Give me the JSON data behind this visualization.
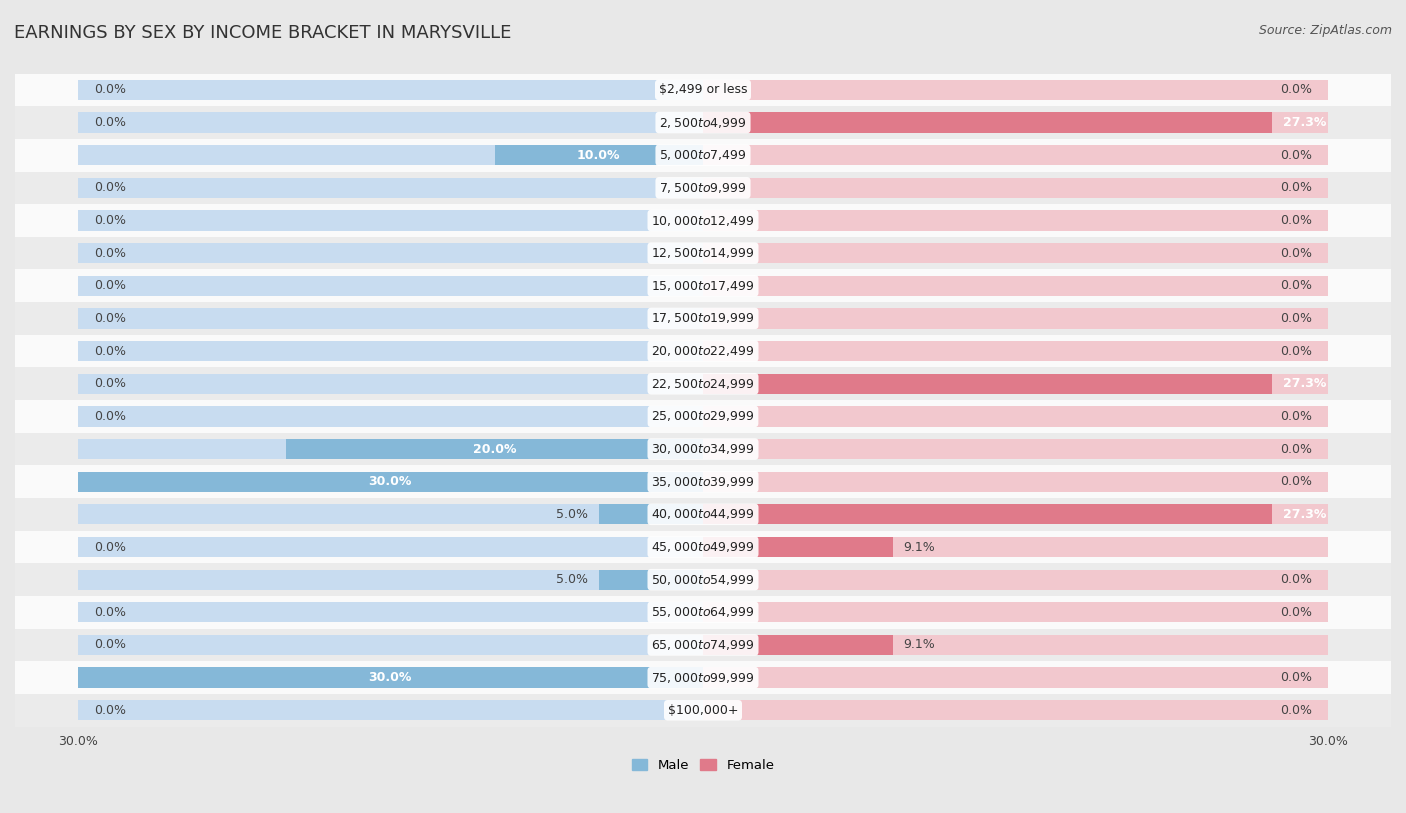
{
  "title": "EARNINGS BY SEX BY INCOME BRACKET IN MARYSVILLE",
  "source": "Source: ZipAtlas.com",
  "categories": [
    "$2,499 or less",
    "$2,500 to $4,999",
    "$5,000 to $7,499",
    "$7,500 to $9,999",
    "$10,000 to $12,499",
    "$12,500 to $14,999",
    "$15,000 to $17,499",
    "$17,500 to $19,999",
    "$20,000 to $22,499",
    "$22,500 to $24,999",
    "$25,000 to $29,999",
    "$30,000 to $34,999",
    "$35,000 to $39,999",
    "$40,000 to $44,999",
    "$45,000 to $49,999",
    "$50,000 to $54,999",
    "$55,000 to $64,999",
    "$65,000 to $74,999",
    "$75,000 to $99,999",
    "$100,000+"
  ],
  "male_values": [
    0.0,
    0.0,
    10.0,
    0.0,
    0.0,
    0.0,
    0.0,
    0.0,
    0.0,
    0.0,
    0.0,
    20.0,
    30.0,
    5.0,
    0.0,
    5.0,
    0.0,
    0.0,
    30.0,
    0.0
  ],
  "female_values": [
    0.0,
    27.3,
    0.0,
    0.0,
    0.0,
    0.0,
    0.0,
    0.0,
    0.0,
    27.3,
    0.0,
    0.0,
    0.0,
    27.3,
    9.1,
    0.0,
    0.0,
    9.1,
    0.0,
    0.0
  ],
  "male_color": "#85B8D8",
  "female_color": "#E07A8A",
  "bar_bg_male": "#C8DCF0",
  "bar_bg_female": "#F2C8CE",
  "row_color_odd": "#FAFAFA",
  "row_color_even": "#EBEBEB",
  "xlim": 30.0,
  "legend_male": "Male",
  "legend_female": "Female",
  "title_fontsize": 13,
  "label_fontsize": 9,
  "category_fontsize": 9,
  "source_fontsize": 9,
  "bg_color": "#E8E8E8"
}
